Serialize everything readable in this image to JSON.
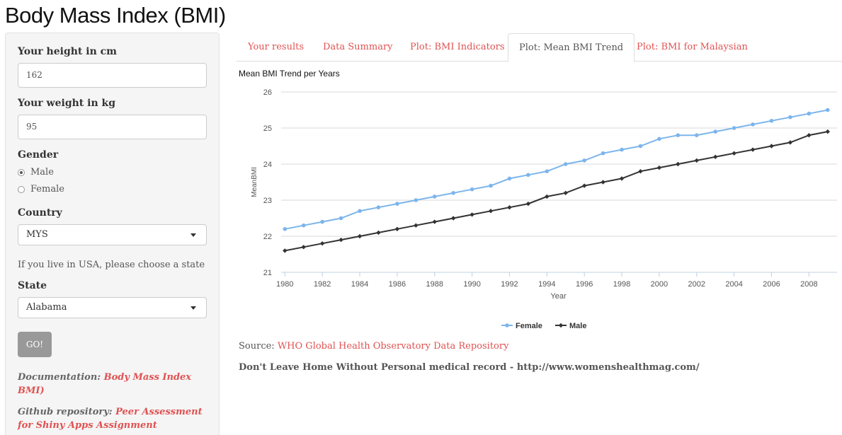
{
  "app": {
    "title": "Body Mass Index (BMI)"
  },
  "sidebar": {
    "height_label": "Your height in cm",
    "height_value": "162",
    "weight_label": "Your weight in kg",
    "weight_value": "95",
    "gender_label": "Gender",
    "gender_options": [
      {
        "label": "Male",
        "checked": true
      },
      {
        "label": "Female",
        "checked": false
      }
    ],
    "country_label": "Country",
    "country_value": "MYS",
    "state_help": "If you live in USA, please choose a state",
    "state_label": "State",
    "state_value": "Alabama",
    "go_label": "GO!",
    "doc_prefix": "Documentation: ",
    "doc_link": "Body Mass Index BMI)",
    "github_prefix": "Github repository: ",
    "github_link": "Peer Assessment for Shiny Apps Assignment"
  },
  "tabs": [
    {
      "label": "Your results",
      "active": false
    },
    {
      "label": "Data Summary",
      "active": false
    },
    {
      "label": "Plot: BMI Indicators",
      "active": false
    },
    {
      "label": "Plot: Mean BMI Trend",
      "active": true
    },
    {
      "label": "Plot: BMI for Malaysian",
      "active": false
    }
  ],
  "colors": {
    "link": "#e05252",
    "female": "#7cb5ec",
    "male": "#333333"
  },
  "chart_data": {
    "type": "line",
    "title": "Mean BMI Trend per Years",
    "xlabel": "Year",
    "ylabel": "MeanBMI",
    "ylim": [
      21,
      26
    ],
    "yticks": [
      21,
      22,
      23,
      24,
      25,
      26
    ],
    "xticks": [
      1980,
      1982,
      1984,
      1986,
      1988,
      1990,
      1992,
      1994,
      1996,
      1998,
      2000,
      2002,
      2004,
      2006,
      2008
    ],
    "x": [
      1980,
      1981,
      1982,
      1983,
      1984,
      1985,
      1986,
      1987,
      1988,
      1989,
      1990,
      1991,
      1992,
      1993,
      1994,
      1995,
      1996,
      1997,
      1998,
      1999,
      2000,
      2001,
      2002,
      2003,
      2004,
      2005,
      2006,
      2007,
      2008,
      2009
    ],
    "grid": true,
    "legend_position": "bottom",
    "series": [
      {
        "name": "Female",
        "color": "#7cb5ec",
        "values": [
          22.2,
          22.3,
          22.4,
          22.5,
          22.7,
          22.8,
          22.9,
          23.0,
          23.1,
          23.2,
          23.3,
          23.4,
          23.6,
          23.7,
          23.8,
          24.0,
          24.1,
          24.3,
          24.4,
          24.5,
          24.7,
          24.8,
          24.8,
          24.9,
          25.0,
          25.1,
          25.2,
          25.3,
          25.4,
          25.5
        ]
      },
      {
        "name": "Male",
        "color": "#333333",
        "values": [
          21.6,
          21.7,
          21.8,
          21.9,
          22.0,
          22.1,
          22.2,
          22.3,
          22.4,
          22.5,
          22.6,
          22.7,
          22.8,
          22.9,
          23.1,
          23.2,
          23.4,
          23.5,
          23.6,
          23.8,
          23.9,
          24.0,
          24.1,
          24.2,
          24.3,
          24.4,
          24.5,
          24.6,
          24.8,
          24.9
        ]
      }
    ]
  },
  "footer": {
    "source_prefix": "Source: ",
    "source_link": "WHO Global Health Observatory Data Repository",
    "quote": "Don't Leave Home Without Personal medical record - http://www.womenshealthmag.com/"
  }
}
